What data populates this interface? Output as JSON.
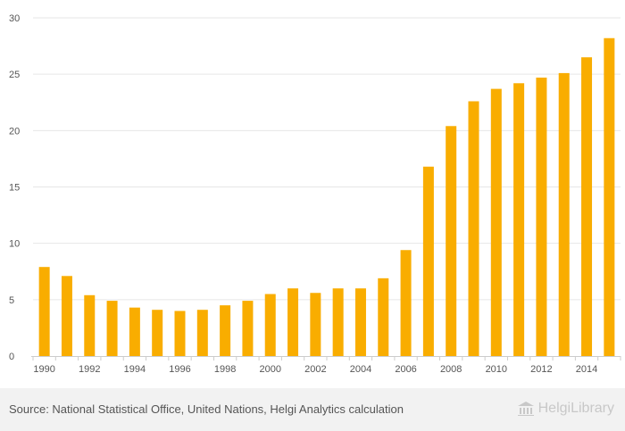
{
  "chart_data": {
    "type": "bar",
    "title": "",
    "xlabel": "",
    "ylabel": "",
    "categories": [
      "1990",
      "1991",
      "1992",
      "1993",
      "1994",
      "1995",
      "1996",
      "1997",
      "1998",
      "1999",
      "2000",
      "2001",
      "2002",
      "2003",
      "2004",
      "2005",
      "2006",
      "2007",
      "2008",
      "2009",
      "2010",
      "2011",
      "2012",
      "2013",
      "2014",
      "2015"
    ],
    "x_tick_labels": [
      "1990",
      "1992",
      "1994",
      "1996",
      "1998",
      "2000",
      "2002",
      "2004",
      "2006",
      "2008",
      "2010",
      "2012",
      "2014"
    ],
    "values": [
      7.9,
      7.1,
      5.4,
      4.9,
      4.3,
      4.1,
      4.0,
      4.1,
      4.5,
      4.9,
      5.5,
      6.0,
      5.6,
      6.0,
      6.0,
      6.9,
      9.4,
      16.8,
      20.4,
      22.6,
      23.7,
      24.2,
      24.7,
      25.1,
      26.5,
      28.2
    ],
    "ylim": [
      0,
      30
    ],
    "y_ticks": [
      "0",
      "5",
      "10",
      "15",
      "20",
      "25",
      "30"
    ],
    "grid": true,
    "bar_color": "#f9ad00"
  },
  "footer": {
    "source": "Source: National Statistical Office, United Nations, Helgi Analytics calculation",
    "brand": "HelgiLibrary"
  }
}
